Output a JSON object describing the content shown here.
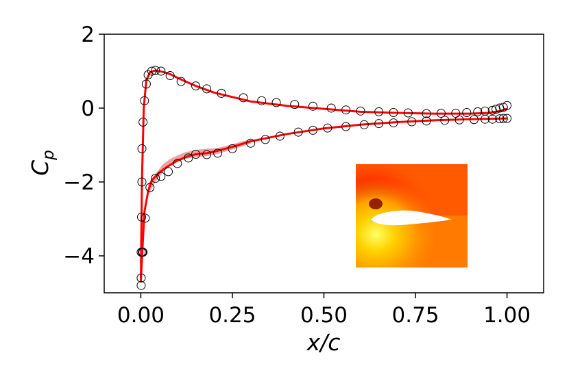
{
  "chart_data": {
    "type": "line",
    "title": "",
    "xlabel": "x/c",
    "ylabel": "C_p",
    "xlim": [
      -0.1,
      1.1
    ],
    "ylim": [
      -5,
      2
    ],
    "grid": false,
    "xticks": [
      0.0,
      0.25,
      0.5,
      0.75,
      1.0
    ],
    "xtick_labels": [
      "0.00",
      "0.25",
      "0.50",
      "0.75",
      "1.00"
    ],
    "yticks": [
      2,
      0,
      -2,
      -4
    ],
    "ytick_labels": [
      "2",
      "0",
      "−2",
      "−4"
    ],
    "colors": {
      "prediction": "#ff0000",
      "band": "#e06666",
      "markers": "#000000"
    },
    "series": [
      {
        "name": "prediction-upper",
        "kind": "line",
        "x": [
          0.0,
          0.003,
          0.008,
          0.015,
          0.025,
          0.04,
          0.06,
          0.08,
          0.1,
          0.15,
          0.2,
          0.25,
          0.3,
          0.35,
          0.4,
          0.5,
          0.6,
          0.7,
          0.8,
          0.9,
          0.95,
          0.98,
          1.0
        ],
        "y": [
          -4.7,
          -2.0,
          0.0,
          0.75,
          0.97,
          1.02,
          0.98,
          0.92,
          0.82,
          0.6,
          0.42,
          0.3,
          0.18,
          0.12,
          0.06,
          -0.02,
          -0.1,
          -0.13,
          -0.15,
          -0.15,
          -0.13,
          -0.08,
          -0.02
        ]
      },
      {
        "name": "prediction-lower",
        "kind": "line",
        "x": [
          0.0,
          0.005,
          0.01,
          0.02,
          0.03,
          0.05,
          0.07,
          0.1,
          0.13,
          0.15,
          0.18,
          0.2,
          0.25,
          0.3,
          0.4,
          0.5,
          0.6,
          0.7,
          0.8,
          0.9,
          0.95,
          1.0
        ],
        "y": [
          -4.7,
          -3.7,
          -2.8,
          -2.25,
          -1.95,
          -1.75,
          -1.6,
          -1.42,
          -1.3,
          -1.25,
          -1.22,
          -1.18,
          -1.05,
          -0.9,
          -0.7,
          -0.55,
          -0.45,
          -0.38,
          -0.33,
          -0.3,
          -0.29,
          -0.28
        ]
      },
      {
        "name": "reference-upper",
        "kind": "markers",
        "x": [
          0.001,
          0.003,
          0.006,
          0.01,
          0.015,
          0.02,
          0.03,
          0.04,
          0.055,
          0.08,
          0.11,
          0.15,
          0.18,
          0.22,
          0.28,
          0.33,
          0.37,
          0.42,
          0.47,
          0.52,
          0.56,
          0.6,
          0.65,
          0.69,
          0.73,
          0.78,
          0.82,
          0.86,
          0.89,
          0.92,
          0.94,
          0.96,
          0.97,
          0.98,
          0.99,
          1.0
        ],
        "y": [
          -3.9,
          -1.1,
          -0.38,
          0.2,
          0.65,
          0.9,
          1.0,
          1.02,
          1.0,
          0.88,
          0.72,
          0.6,
          0.52,
          0.4,
          0.28,
          0.2,
          0.15,
          0.1,
          0.05,
          0.0,
          -0.05,
          -0.08,
          -0.1,
          -0.12,
          -0.13,
          -0.15,
          -0.14,
          -0.14,
          -0.12,
          -0.1,
          -0.08,
          -0.06,
          -0.03,
          0.0,
          0.02,
          0.07
        ]
      },
      {
        "name": "reference-lower",
        "kind": "markers",
        "x": [
          0.001,
          0.001,
          0.002,
          0.003,
          0.004,
          0.006,
          0.012,
          0.025,
          0.04,
          0.055,
          0.075,
          0.1,
          0.13,
          0.15,
          0.18,
          0.21,
          0.25,
          0.3,
          0.34,
          0.38,
          0.43,
          0.47,
          0.51,
          0.56,
          0.61,
          0.65,
          0.69,
          0.74,
          0.78,
          0.83,
          0.87,
          0.91,
          0.94,
          0.96,
          0.98,
          0.99,
          1.0
        ],
        "y": [
          -4.8,
          -4.6,
          -2.95,
          -2.0,
          -3.9,
          -3.9,
          -2.98,
          -2.15,
          -1.9,
          -1.85,
          -1.72,
          -1.5,
          -1.35,
          -1.25,
          -1.26,
          -1.22,
          -1.1,
          -0.95,
          -0.85,
          -0.76,
          -0.65,
          -0.6,
          -0.54,
          -0.5,
          -0.45,
          -0.42,
          -0.4,
          -0.37,
          -0.35,
          -0.33,
          -0.32,
          -0.31,
          -0.3,
          -0.3,
          -0.29,
          -0.28,
          -0.28
        ]
      }
    ],
    "band": {
      "name": "uncertainty-band-lower",
      "x": [
        0.02,
        0.04,
        0.06,
        0.08,
        0.1,
        0.12,
        0.15,
        0.18,
        0.21,
        0.25,
        0.3
      ],
      "upper": [
        -2.05,
        -1.78,
        -1.52,
        -1.38,
        -1.28,
        -1.2,
        -1.13,
        -1.1,
        -1.08,
        -0.98,
        -0.84
      ],
      "lower": [
        -2.35,
        -2.0,
        -1.74,
        -1.56,
        -1.45,
        -1.38,
        -1.32,
        -1.3,
        -1.24,
        -1.12,
        -0.96
      ]
    },
    "inset": {
      "description": "pressure-field contour around airfoil"
    }
  }
}
